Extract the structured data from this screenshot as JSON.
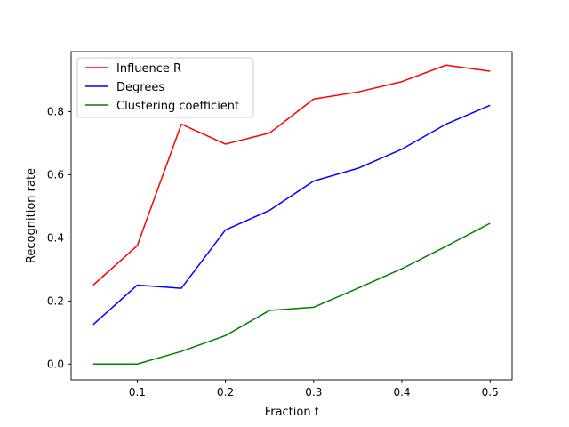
{
  "chart_data": {
    "type": "line",
    "xlabel": "Fraction f",
    "ylabel": "Recognition rate",
    "xlim": [
      0.025,
      0.525
    ],
    "ylim": [
      -0.05,
      0.99
    ],
    "x": [
      0.05,
      0.1,
      0.15,
      0.2,
      0.25,
      0.3,
      0.35,
      0.4,
      0.45,
      0.5
    ],
    "x_ticks": [
      0.1,
      0.2,
      0.3,
      0.4,
      0.5
    ],
    "x_tick_labels": [
      "0.1",
      "0.2",
      "0.3",
      "0.4",
      "0.5"
    ],
    "y_ticks": [
      0.0,
      0.2,
      0.4,
      0.6,
      0.8
    ],
    "y_tick_labels": [
      "0.0",
      "0.2",
      "0.4",
      "0.6",
      "0.8"
    ],
    "grid": false,
    "legend_placement": "upper-left",
    "series": [
      {
        "name": "Influence R",
        "color": "#ff0000",
        "values": [
          0.25,
          0.375,
          0.76,
          0.697,
          0.732,
          0.84,
          0.862,
          0.895,
          0.947,
          0.928
        ]
      },
      {
        "name": "Degrees",
        "color": "#0000ff",
        "values": [
          0.125,
          0.25,
          0.24,
          0.425,
          0.487,
          0.58,
          0.62,
          0.681,
          0.76,
          0.82
        ]
      },
      {
        "name": "Clustering coefficient",
        "color": "#008000",
        "values": [
          0.0,
          0.0,
          0.04,
          0.09,
          0.17,
          0.18,
          0.24,
          0.302,
          0.373,
          0.446
        ]
      }
    ]
  }
}
